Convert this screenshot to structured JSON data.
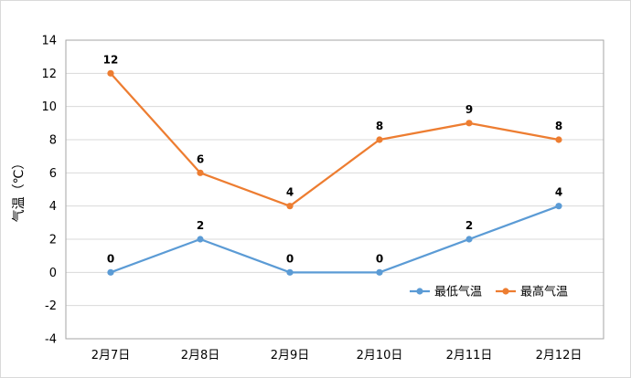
{
  "chart_data": {
    "type": "line",
    "title": "",
    "xlabel": "",
    "ylabel": "气温（℃）",
    "ylim": [
      -4,
      14
    ],
    "yticks": [
      -4,
      -2,
      0,
      2,
      4,
      6,
      8,
      10,
      12,
      14
    ],
    "grid": true,
    "legend_position": "bottom-right",
    "categories": [
      "2月7日",
      "2月8日",
      "2月9日",
      "2月10日",
      "2月11日",
      "2月12日"
    ],
    "series": [
      {
        "name": "最低气温",
        "color": "#5b9bd5",
        "values": [
          0,
          2,
          0,
          0,
          2,
          4
        ]
      },
      {
        "name": "最高气温",
        "color": "#ed7d31",
        "values": [
          12,
          6,
          4,
          8,
          9,
          8
        ]
      }
    ]
  }
}
